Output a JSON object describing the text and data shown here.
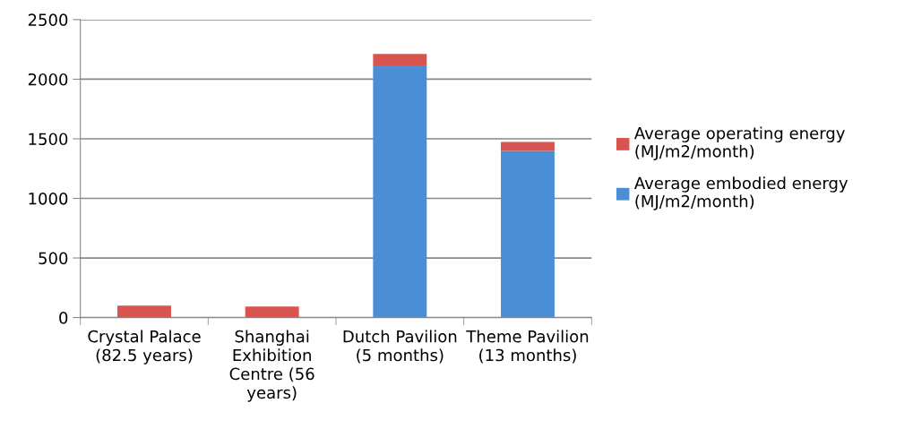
{
  "chart_data": {
    "type": "bar",
    "stacked": true,
    "categories": [
      "Crystal Palace (82.5 years)",
      "Shanghai Exhibition Centre (56 years)",
      "Dutch Pavilion  (5 months)",
      "Theme Pavilion (13 months)"
    ],
    "series": [
      {
        "name": "Average embodied energy (MJ/m2/month)",
        "color": "#4a8fd6",
        "values": [
          0,
          0,
          2116,
          1399
        ]
      },
      {
        "name": "Average operating energy (MJ/m2/month)",
        "color": "#d9534f",
        "values": [
          100,
          92,
          95,
          75
        ]
      }
    ],
    "ylim": [
      0,
      2500
    ],
    "yticks": [
      0,
      500,
      1000,
      1500,
      2000,
      2500
    ],
    "grid": "y",
    "legend": "right"
  }
}
